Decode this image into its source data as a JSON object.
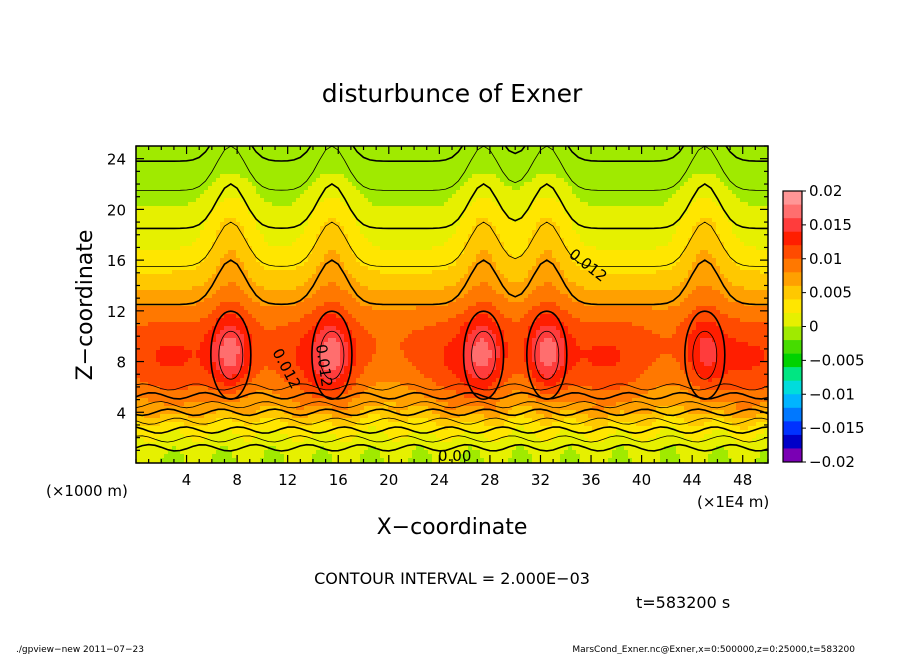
{
  "chart_data": {
    "type": "heatmap",
    "title": "disturbunce of Exner",
    "xlabel": "X−coordinate",
    "ylabel": "Z−coordinate",
    "x_unit": "(×1E4 m)",
    "y_unit": "(×1000 m)",
    "xlim": [
      0,
      50
    ],
    "ylim": [
      0,
      25
    ],
    "xticks": [
      4,
      8,
      12,
      16,
      20,
      24,
      28,
      32,
      36,
      40,
      44,
      48
    ],
    "yticks": [
      4,
      8,
      12,
      16,
      20,
      24
    ],
    "colorbar": {
      "ticks": [
        "0.02",
        "0.015",
        "0.01",
        "0.005",
        "0",
        "−0.005",
        "−0.01",
        "−0.015",
        "−0.02"
      ],
      "tick_values": [
        0.02,
        0.015,
        0.01,
        0.005,
        0,
        -0.005,
        -0.01,
        -0.015,
        -0.02
      ],
      "range": [
        -0.02,
        0.02
      ],
      "colors": [
        "#7a00b4",
        "#0000c8",
        "#0032ff",
        "#0078ff",
        "#00b4ff",
        "#00dcdc",
        "#00e682",
        "#00d200",
        "#46dc00",
        "#a0ea00",
        "#e6f000",
        "#ffe600",
        "#ffc800",
        "#ffa000",
        "#ff7800",
        "#ff4b00",
        "#ff1e00",
        "#ff3c3c",
        "#ff6e6e",
        "#ff9696"
      ]
    },
    "contour_labels": [
      "0.012",
      "0.012",
      "0.012",
      "0.00"
    ],
    "contour_interval_text": "CONTOUR INTERVAL = 2.000E−03",
    "time_text": "t=583200 s",
    "peaks": [
      {
        "x": 7.5,
        "z": 8.5,
        "value": 0.018
      },
      {
        "x": 15.5,
        "z": 8.5,
        "value": 0.016
      },
      {
        "x": 27.5,
        "z": 8.5,
        "value": 0.016
      },
      {
        "x": 32.5,
        "z": 8.5,
        "value": 0.018
      },
      {
        "x": 45.0,
        "z": 8.5,
        "value": 0.015
      }
    ]
  },
  "footer": {
    "left": "./gpview−new   2011−07−23",
    "right": "MarsCond_Exner.nc@Exner,x=0:500000,z=0:25000,t=583200"
  }
}
